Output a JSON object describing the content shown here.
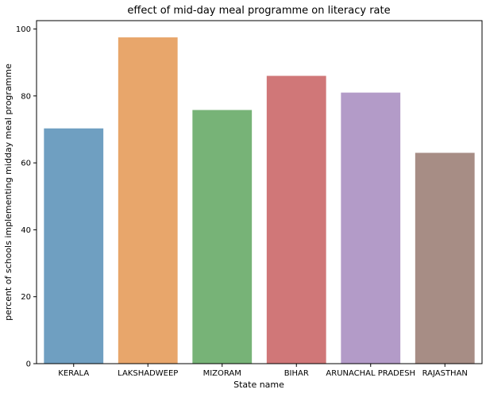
{
  "chart_data": {
    "type": "bar",
    "title": "effect of mid-day meal programme on literacy rate",
    "xlabel": "State name",
    "ylabel": "percent of schools implementing midday meal programme",
    "categories": [
      "KERALA",
      "LAKSHADWEEP",
      "MIZORAM",
      "BIHAR",
      "ARUNACHAL PRADESH",
      "RAJASTHAN"
    ],
    "values": [
      70.3,
      97.5,
      75.8,
      86.0,
      81.0,
      63.0
    ],
    "colors": [
      "#6f9fc1",
      "#e8a66b",
      "#77b377",
      "#d07778",
      "#b39bc8",
      "#a78d85"
    ],
    "ylim": [
      0,
      102.5
    ],
    "yticks": [
      0,
      20,
      40,
      60,
      80,
      100
    ],
    "grid": false,
    "legend": false
  }
}
